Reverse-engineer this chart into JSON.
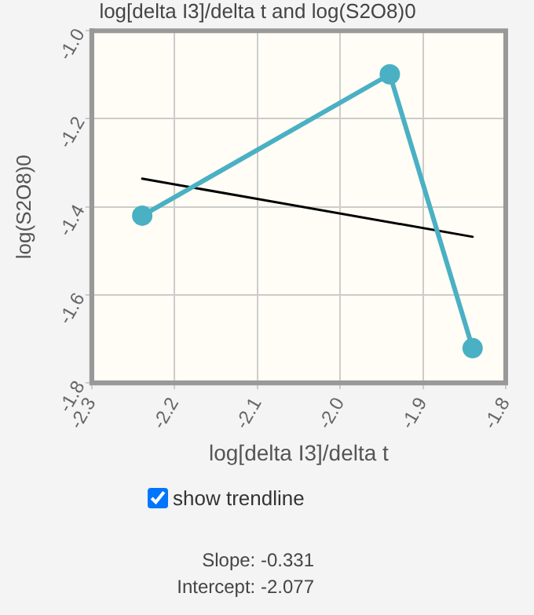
{
  "chart_data": {
    "type": "line",
    "title": "log[delta I3]/delta t and log(S2O8)0",
    "xlabel": "log[delta I3]/delta t",
    "ylabel": "log(S2O8)0",
    "series": [
      {
        "type": "line",
        "color": "#4ab0c4",
        "x": [
          -2.239,
          -1.94,
          -1.84
        ],
        "values": [
          -1.42,
          -1.099,
          -1.721
        ],
        "marker": "circle"
      },
      {
        "type": "line",
        "color": "#000000",
        "x": [
          -2.239,
          -1.84
        ],
        "values": [
          -1.336,
          -1.468
        ],
        "marker": "none"
      }
    ],
    "xlim": [
      -2.3,
      -1.8
    ],
    "xticks": [
      -2.3,
      -2.2,
      -2.1,
      {
        "value": -2,
        "label": "-2.0"
      },
      -1.9,
      -1.8
    ],
    "ylim": [
      -1.8,
      -1.0
    ],
    "yticks": [
      -1.8,
      -1.6,
      -1.4,
      -1.2,
      {
        "value": -1,
        "label": "-1.0"
      }
    ],
    "grid": true,
    "legend": false,
    "annotations": [
      "show trendline",
      "Slope: -0.331",
      "Intercept: -2.077"
    ]
  }
}
